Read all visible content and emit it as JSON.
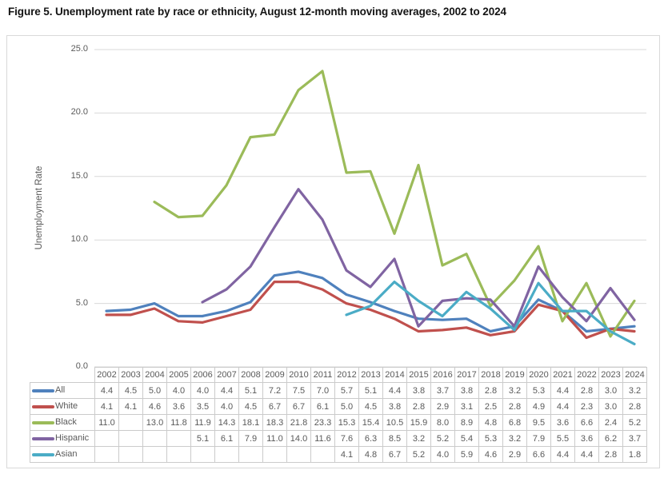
{
  "title": "Figure 5. Unemployment rate by race or ethnicity, August 12-month moving averages, 2002 to 2024",
  "chart_data": {
    "type": "line",
    "title": "Figure 5. Unemployment rate by race or ethnicity, August 12-month moving averages, 2002 to 2024",
    "xlabel": "",
    "ylabel": "Unemployment Rate",
    "ylim": [
      0,
      25
    ],
    "yticks": [
      "0.0",
      "5.0",
      "10.0",
      "15.0",
      "20.0",
      "25.0"
    ],
    "grid": true,
    "legend_position": "data-table-left",
    "categories": [
      "2002",
      "2003",
      "2004",
      "2005",
      "2006",
      "2007",
      "2008",
      "2009",
      "2010",
      "2011",
      "2012",
      "2013",
      "2014",
      "2015",
      "2016",
      "2017",
      "2018",
      "2019",
      "2020",
      "2021",
      "2022",
      "2023",
      "2024"
    ],
    "series": [
      {
        "name": "All",
        "color": "#4F81BD",
        "values": [
          4.4,
          4.5,
          5.0,
          4.0,
          4.0,
          4.4,
          5.1,
          7.2,
          7.5,
          7.0,
          5.7,
          5.1,
          4.4,
          3.8,
          3.7,
          3.8,
          2.8,
          3.2,
          5.3,
          4.4,
          2.8,
          3.0,
          3.2
        ]
      },
      {
        "name": "White",
        "color": "#C0504D",
        "values": [
          4.1,
          4.1,
          4.6,
          3.6,
          3.5,
          4.0,
          4.5,
          6.7,
          6.7,
          6.1,
          5.0,
          4.5,
          3.8,
          2.8,
          2.9,
          3.1,
          2.5,
          2.8,
          4.9,
          4.4,
          2.3,
          3.0,
          2.8
        ]
      },
      {
        "name": "Black",
        "color": "#9BBB59",
        "values": [
          11.0,
          null,
          13.0,
          11.8,
          11.9,
          14.3,
          18.1,
          18.3,
          21.8,
          23.3,
          15.3,
          15.4,
          10.5,
          15.9,
          8.0,
          8.9,
          4.8,
          6.8,
          9.5,
          3.6,
          6.6,
          2.4,
          5.2
        ]
      },
      {
        "name": "Hispanic",
        "color": "#8064A2",
        "values": [
          null,
          null,
          null,
          null,
          5.1,
          6.1,
          7.9,
          11.0,
          14.0,
          11.6,
          7.6,
          6.3,
          8.5,
          3.2,
          5.2,
          5.4,
          5.3,
          3.2,
          7.9,
          5.5,
          3.6,
          6.2,
          3.7
        ]
      },
      {
        "name": "Asian",
        "color": "#4BACC6",
        "values": [
          null,
          null,
          null,
          null,
          null,
          null,
          null,
          null,
          null,
          null,
          4.1,
          4.8,
          6.7,
          5.2,
          4.0,
          5.9,
          4.6,
          2.9,
          6.6,
          4.4,
          4.4,
          2.8,
          1.8
        ]
      }
    ],
    "colors": {
      "gridline": "#d9d9d9",
      "axis_text": "#595959",
      "table_border": "#cbcbcb"
    }
  }
}
